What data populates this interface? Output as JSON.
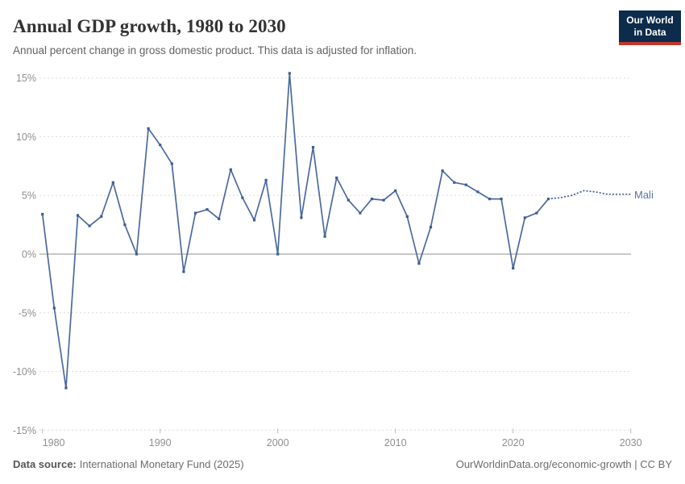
{
  "header": {
    "title": "Annual GDP growth, 1980 to 2030",
    "subtitle": "Annual percent change in gross domestic product. This data is adjusted for inflation.",
    "logo": {
      "line1": "Our World",
      "line2": "in Data",
      "bg_color": "#0d2b4a",
      "bar_color": "#c0372e"
    }
  },
  "footer": {
    "data_source_label": "Data source:",
    "data_source_value": "International Monetary Fund (2025)",
    "right_text": "OurWorldinData.org/economic-growth | CC BY"
  },
  "chart_data": {
    "type": "line",
    "title": "Annual GDP growth, 1980 to 2030",
    "xlabel": "",
    "ylabel": "",
    "ylim": [
      -15,
      15
    ],
    "xlim": [
      1980,
      2030
    ],
    "grid": true,
    "y_ticks": [
      {
        "value": 15,
        "label": "15%"
      },
      {
        "value": 10,
        "label": "10%"
      },
      {
        "value": 5,
        "label": "5%"
      },
      {
        "value": 0,
        "label": "0%"
      },
      {
        "value": -5,
        "label": "-5%"
      },
      {
        "value": -10,
        "label": "-10%"
      },
      {
        "value": -15,
        "label": "-15%"
      }
    ],
    "x_ticks": [
      {
        "value": 1980,
        "label": "1980"
      },
      {
        "value": 1990,
        "label": "1990"
      },
      {
        "value": 2000,
        "label": "2000"
      },
      {
        "value": 2010,
        "label": "2010"
      },
      {
        "value": 2020,
        "label": "2020"
      },
      {
        "value": 2030,
        "label": "2030"
      }
    ],
    "series": [
      {
        "name": "Mali",
        "color": "#4c6a9e",
        "marker_color": "#3e5d95",
        "projection_start_year": 2023,
        "x": [
          1980,
          1981,
          1982,
          1983,
          1984,
          1985,
          1986,
          1987,
          1988,
          1989,
          1990,
          1991,
          1992,
          1993,
          1994,
          1995,
          1996,
          1997,
          1998,
          1999,
          2000,
          2001,
          2002,
          2003,
          2004,
          2005,
          2006,
          2007,
          2008,
          2009,
          2010,
          2011,
          2012,
          2013,
          2014,
          2015,
          2016,
          2017,
          2018,
          2019,
          2020,
          2021,
          2022,
          2023,
          2024,
          2025,
          2026,
          2027,
          2028,
          2029,
          2030
        ],
        "values": [
          3.4,
          -4.6,
          -11.4,
          3.3,
          2.4,
          3.2,
          6.1,
          2.5,
          0.0,
          10.7,
          9.3,
          7.7,
          -1.5,
          3.5,
          3.8,
          3.0,
          7.2,
          4.8,
          2.9,
          6.3,
          0.0,
          15.4,
          3.1,
          9.1,
          1.5,
          6.5,
          4.6,
          3.5,
          4.7,
          4.6,
          5.4,
          3.2,
          -0.8,
          2.3,
          7.1,
          6.1,
          5.9,
          5.3,
          4.7,
          4.7,
          -1.2,
          3.1,
          3.5,
          4.7,
          4.8,
          5.0,
          5.4,
          5.3,
          5.1,
          5.1,
          5.1
        ]
      }
    ],
    "legend_position": "right-of-line-end",
    "zero_line": true
  }
}
